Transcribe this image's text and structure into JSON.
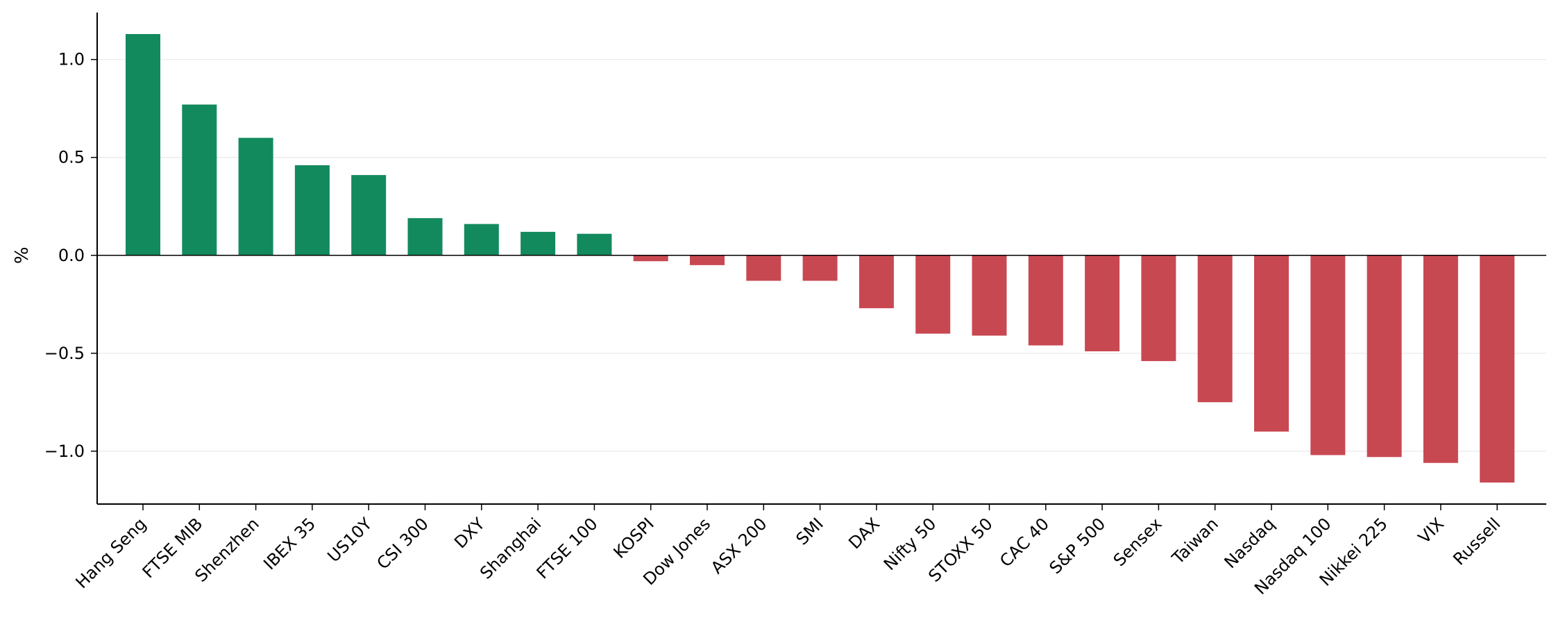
{
  "chart_data": {
    "type": "bar",
    "ylabel": "%",
    "ylim": [
      -1.27,
      1.24
    ],
    "yticks": [
      1.0,
      0.5,
      0.0,
      -0.5,
      -1.0
    ],
    "ytick_labels": [
      "1.0",
      "0.5",
      "0.0",
      "−0.5",
      "−1.0"
    ],
    "grid": true,
    "categories": [
      "Hang Seng",
      "FTSE MIB",
      "Shenzhen",
      "IBEX 35",
      "US10Y",
      "CSI 300",
      "DXY",
      "Shanghai",
      "FTSE 100",
      "KOSPI",
      "Dow Jones",
      "ASX 200",
      "SMI",
      "DAX",
      "Nifty 50",
      "STOXX 50",
      "CAC 40",
      "S&P 500",
      "Sensex",
      "Taiwan",
      "Nasdaq",
      "Nasdaq 100",
      "Nikkei 225",
      "VIX",
      "Russell"
    ],
    "values": [
      1.13,
      0.77,
      0.6,
      0.46,
      0.41,
      0.19,
      0.16,
      0.12,
      0.11,
      -0.03,
      -0.05,
      -0.13,
      -0.13,
      -0.27,
      -0.4,
      -0.41,
      -0.46,
      -0.49,
      -0.54,
      -0.75,
      -0.9,
      -1.02,
      -1.03,
      -1.06,
      -1.16
    ],
    "colors": {
      "positive": "#138a5e",
      "negative": "#c84852"
    }
  }
}
